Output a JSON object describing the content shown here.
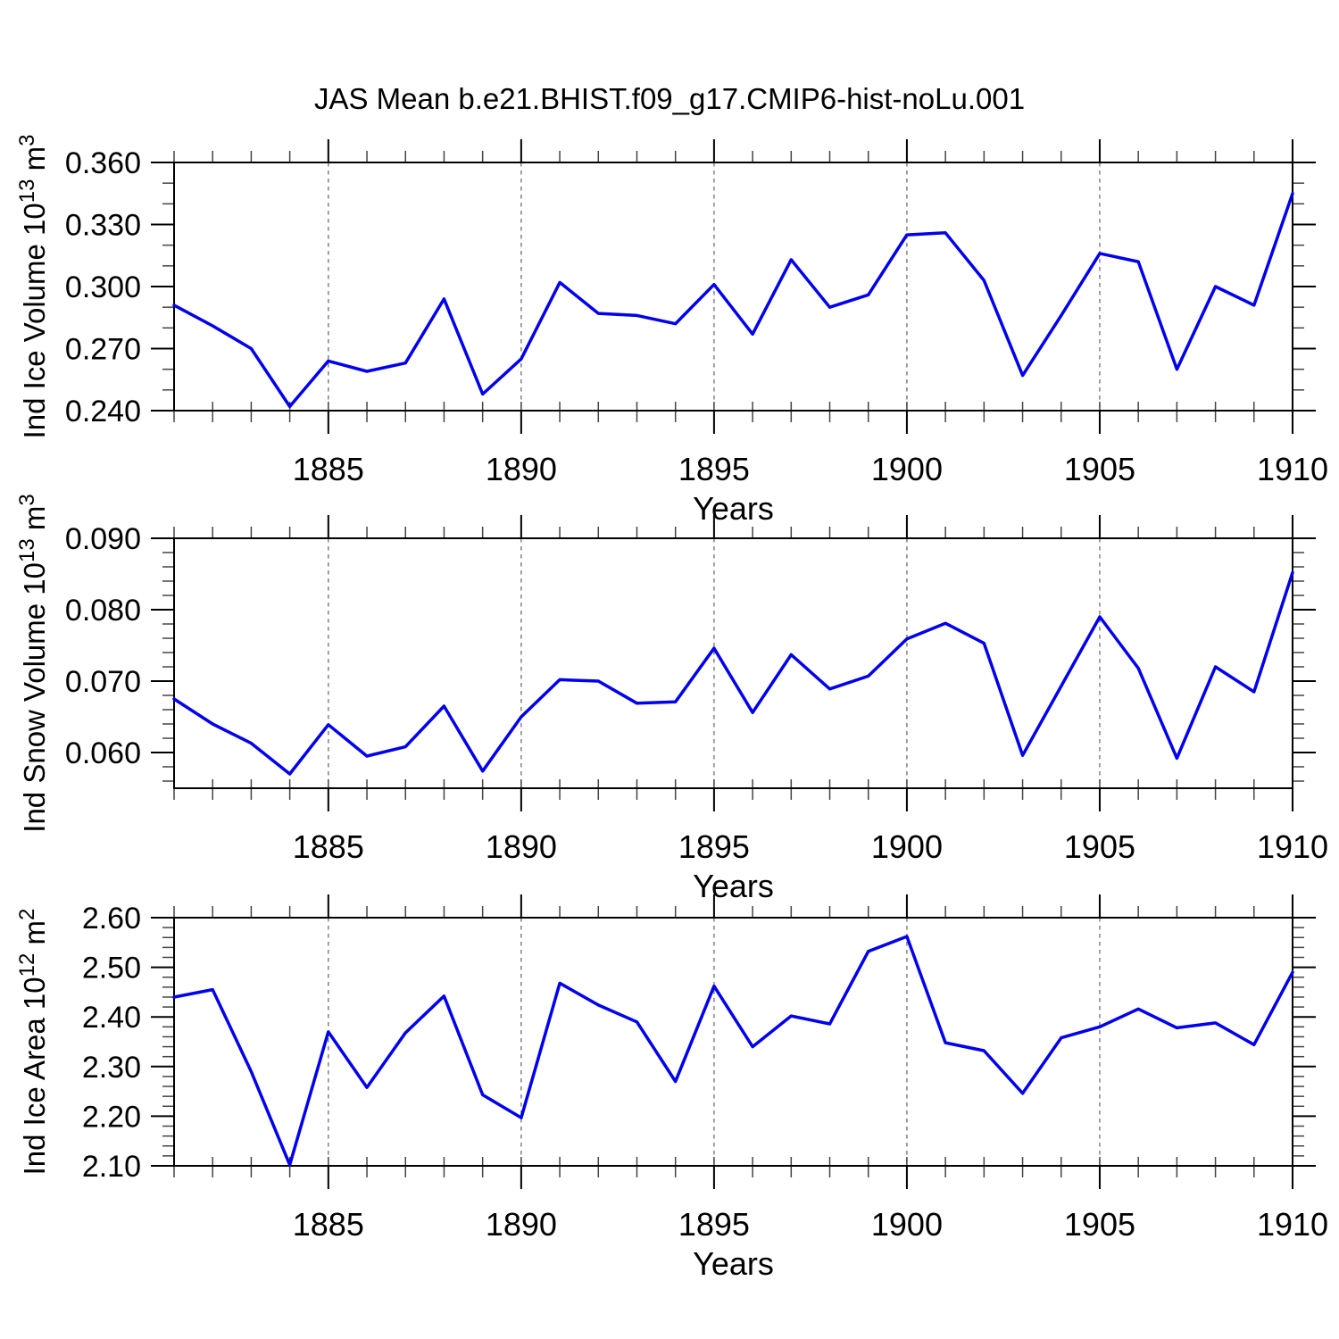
{
  "title": "JAS Mean b.e21.BHIST.f09_g17.CMIP6-hist-noLu.001",
  "colors": {
    "line": "#0000EE",
    "frame": "#000000",
    "minor_tick": "#444444",
    "grid": "#6e6e6e",
    "background": "#ffffff"
  },
  "chart_data": [
    {
      "type": "line",
      "ylabel": "Ind Ice Volume 10^13 m^3",
      "ylabel_parts": [
        {
          "t": "Ind Ice Volume 10"
        },
        {
          "t": "13",
          "sup": true
        },
        {
          "t": " m"
        },
        {
          "t": "3",
          "sup": true
        }
      ],
      "xlabel": "Years",
      "x": [
        1881,
        1882,
        1883,
        1884,
        1885,
        1886,
        1887,
        1888,
        1889,
        1890,
        1891,
        1892,
        1893,
        1894,
        1895,
        1896,
        1897,
        1898,
        1899,
        1900,
        1901,
        1902,
        1903,
        1904,
        1905,
        1906,
        1907,
        1908,
        1909,
        1910
      ],
      "values": [
        0.291,
        0.281,
        0.27,
        0.242,
        0.264,
        0.259,
        0.263,
        0.294,
        0.248,
        0.265,
        0.302,
        0.287,
        0.286,
        0.282,
        0.301,
        0.277,
        0.313,
        0.29,
        0.296,
        0.325,
        0.326,
        0.303,
        0.257,
        0.286,
        0.316,
        0.312,
        0.26,
        0.3,
        0.291,
        0.345
      ],
      "xlim": [
        1881,
        1910
      ],
      "ylim": [
        0.24,
        0.36
      ],
      "y_ticks": {
        "major_start": 0.24,
        "major_step": 0.03,
        "minor_start": 0.25,
        "minor_step": 0.01,
        "decimals": 3
      },
      "x_tick_labels": [
        1885,
        1890,
        1895,
        1900,
        1905,
        1910
      ],
      "grid_years": [
        1885,
        1890,
        1895,
        1900,
        1905
      ],
      "grid_on": true,
      "legend": "none"
    },
    {
      "type": "line",
      "ylabel": "Ind Snow Volume 10^13 m^3",
      "ylabel_parts": [
        {
          "t": "Ind Snow Volume 10"
        },
        {
          "t": "13",
          "sup": true
        },
        {
          "t": " m"
        },
        {
          "t": "3",
          "sup": true
        }
      ],
      "xlabel": "Years",
      "x": [
        1881,
        1882,
        1883,
        1884,
        1885,
        1886,
        1887,
        1888,
        1889,
        1890,
        1891,
        1892,
        1893,
        1894,
        1895,
        1896,
        1897,
        1898,
        1899,
        1900,
        1901,
        1902,
        1903,
        1904,
        1905,
        1906,
        1907,
        1908,
        1909,
        1910
      ],
      "values": [
        0.0675,
        0.064,
        0.0613,
        0.057,
        0.0639,
        0.0595,
        0.0608,
        0.0665,
        0.0574,
        0.065,
        0.0702,
        0.07,
        0.0669,
        0.0671,
        0.0746,
        0.0656,
        0.0737,
        0.0689,
        0.0707,
        0.0759,
        0.0781,
        0.0753,
        0.0596,
        0.0693,
        0.079,
        0.0718,
        0.0592,
        0.072,
        0.0685,
        0.0852
      ],
      "xlim": [
        1881,
        1910
      ],
      "ylim": [
        0.055,
        0.09
      ],
      "y_ticks": {
        "major_start": 0.06,
        "major_step": 0.01,
        "minor_start": 0.056,
        "minor_step": 0.002,
        "decimals": 3
      },
      "x_tick_labels": [
        1885,
        1890,
        1895,
        1900,
        1905,
        1910
      ],
      "grid_years": [
        1885,
        1890,
        1895,
        1900,
        1905
      ],
      "grid_on": true,
      "legend": "none"
    },
    {
      "type": "line",
      "ylabel": "Ind Ice Area 10^12 m^2",
      "ylabel_parts": [
        {
          "t": "Ind Ice Area 10"
        },
        {
          "t": "12",
          "sup": true
        },
        {
          "t": " m"
        },
        {
          "t": "2",
          "sup": true
        }
      ],
      "xlabel": "Years",
      "x": [
        1881,
        1882,
        1883,
        1884,
        1885,
        1886,
        1887,
        1888,
        1889,
        1890,
        1891,
        1892,
        1893,
        1894,
        1895,
        1896,
        1897,
        1898,
        1899,
        1900,
        1901,
        1902,
        1903,
        1904,
        1905,
        1906,
        1907,
        1908,
        1909,
        1910
      ],
      "values": [
        2.44,
        2.455,
        2.29,
        2.102,
        2.37,
        2.258,
        2.368,
        2.442,
        2.243,
        2.197,
        2.468,
        2.424,
        2.39,
        2.27,
        2.462,
        2.34,
        2.402,
        2.386,
        2.532,
        2.562,
        2.348,
        2.332,
        2.246,
        2.358,
        2.38,
        2.416,
        2.378,
        2.388,
        2.344,
        2.49
      ],
      "xlim": [
        1881,
        1910
      ],
      "ylim": [
        2.1,
        2.6
      ],
      "y_ticks": {
        "major_start": 2.1,
        "major_step": 0.1,
        "minor_start": 2.12,
        "minor_step": 0.02,
        "decimals": 2
      },
      "x_tick_labels": [
        1885,
        1890,
        1895,
        1900,
        1905,
        1910
      ],
      "grid_years": [
        1885,
        1890,
        1895,
        1900,
        1905
      ],
      "grid_on": true,
      "legend": "none"
    }
  ]
}
